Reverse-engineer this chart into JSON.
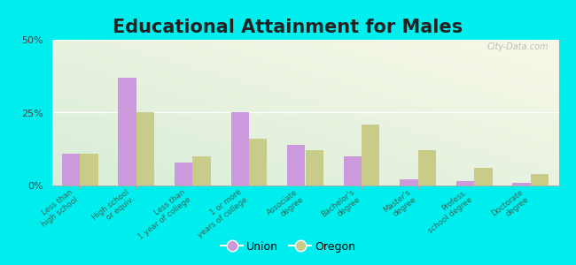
{
  "title": "Educational Attainment for Males",
  "categories": [
    "Less than\nhigh school",
    "High school\nor equiv.",
    "Less than\n1 year of college",
    "1 or more\nyears of college",
    "Associate\ndegree",
    "Bachelor's\ndegree",
    "Master's\ndegree",
    "Profess.\nschool degree",
    "Doctorate\ndegree"
  ],
  "union_values": [
    11,
    37,
    8,
    25,
    14,
    10,
    2,
    1.5,
    1
  ],
  "oregon_values": [
    11,
    25,
    10,
    16,
    12,
    21,
    12,
    6,
    4
  ],
  "union_color": "#cc99dd",
  "oregon_color": "#c8cc88",
  "ylim": [
    0,
    50
  ],
  "yticks": [
    0,
    25,
    50
  ],
  "ytick_labels": [
    "0%",
    "25%",
    "50%"
  ],
  "bg_top_right": "#f5f5e8",
  "bg_bottom_left": "#d8edd8",
  "outer_background": "#00eeee",
  "title_fontsize": 15,
  "legend_union": "Union",
  "legend_oregon": "Oregon",
  "watermark": "City-Data.com",
  "label_color": "#336655",
  "title_color": "#222222"
}
